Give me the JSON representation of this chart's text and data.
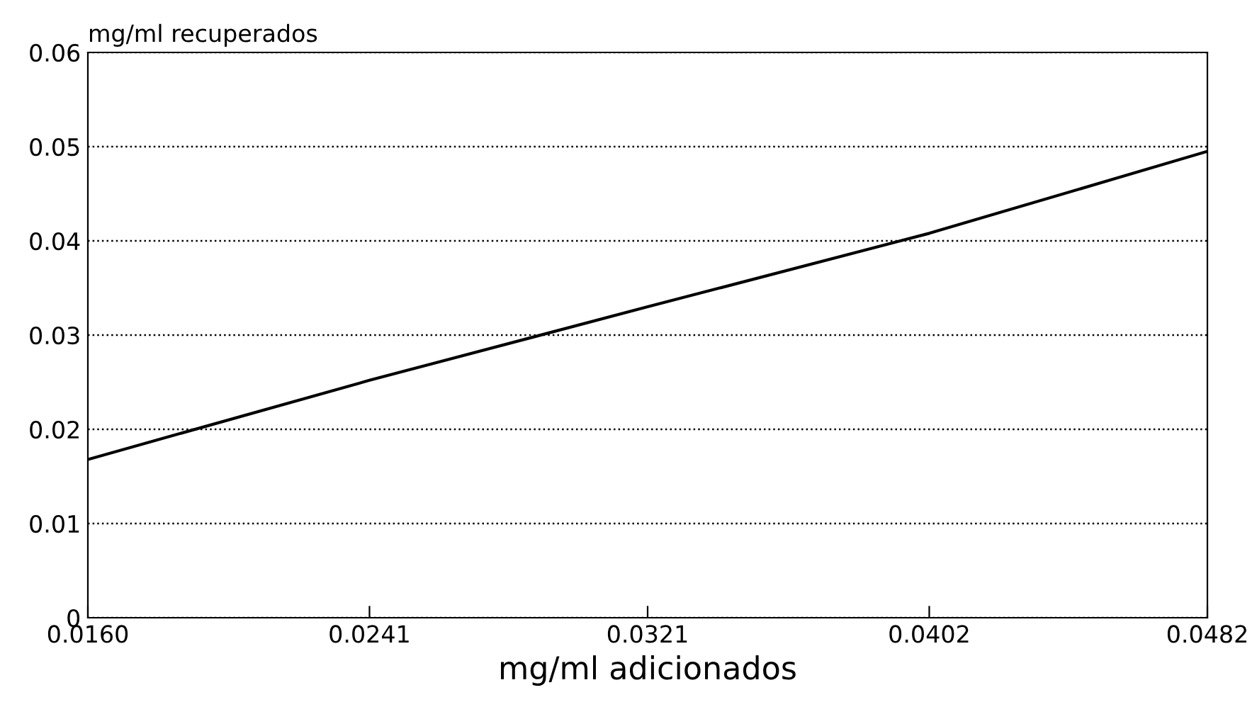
{
  "chart_data": {
    "type": "line",
    "xlabel": "mg/ml adicionados",
    "ylabel": "mg/ml recuperados",
    "x": [
      0.016,
      0.0241,
      0.0321,
      0.0402,
      0.0482
    ],
    "series": [
      {
        "color": "#000000",
        "values": [
          0.0168,
          0.0252,
          0.033,
          0.0408,
          0.0495
        ]
      }
    ],
    "xlim": [
      0.016,
      0.0482
    ],
    "xticks": [
      {
        "value": 0.016,
        "label": "0.0160"
      },
      {
        "value": 0.0241,
        "label": "0.0241"
      },
      {
        "value": 0.0321,
        "label": "0.0321"
      },
      {
        "value": 0.0402,
        "label": "0.0402"
      },
      {
        "value": 0.0482,
        "label": "0.0482"
      }
    ],
    "ylim": [
      0,
      0.06
    ],
    "yticks": [
      {
        "value": 0,
        "label": "0"
      },
      {
        "value": 0.01,
        "label": "0.01"
      },
      {
        "value": 0.02,
        "label": "0.02"
      },
      {
        "value": 0.03,
        "label": "0.03"
      },
      {
        "value": 0.04,
        "label": "0.04"
      },
      {
        "value": 0.05,
        "label": "0.05"
      },
      {
        "value": 0.06,
        "label": "0.06"
      }
    ],
    "grid": "y",
    "marker": "none",
    "line_style": "solid",
    "legend": false
  }
}
